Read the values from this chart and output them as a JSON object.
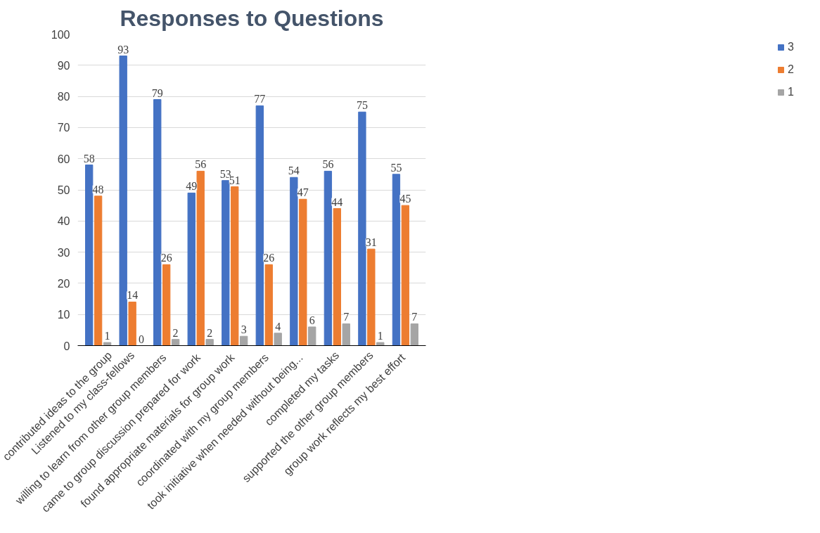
{
  "chart_data": {
    "type": "bar",
    "title": "Responses to Questions",
    "categories": [
      "contributed ideas to the group",
      "Listened to my class-fellows",
      "willing to learn  from other group members",
      "came to group discussion  prepared for work",
      "found appropriate materials for  group work",
      "coordinated with my group  members",
      "took initiative when needed  without being...",
      "completed my tasks",
      "supported the other group members",
      "group work  reflects my best effort"
    ],
    "series": [
      {
        "name": "3",
        "color": "#4472c4",
        "values": [
          58,
          93,
          79,
          49,
          53,
          77,
          54,
          56,
          75,
          55
        ]
      },
      {
        "name": "2",
        "color": "#ed7d31",
        "values": [
          48,
          14,
          26,
          56,
          51,
          26,
          47,
          44,
          31,
          45
        ]
      },
      {
        "name": "1",
        "color": "#a5a5a5",
        "values": [
          1,
          0,
          2,
          2,
          3,
          4,
          6,
          7,
          1,
          7
        ]
      }
    ],
    "ylim": [
      0,
      100
    ],
    "yticks": [
      0,
      10,
      20,
      30,
      40,
      50,
      60,
      70,
      80,
      90,
      100
    ],
    "grid": "y",
    "legend": "right",
    "data_labels": true
  }
}
